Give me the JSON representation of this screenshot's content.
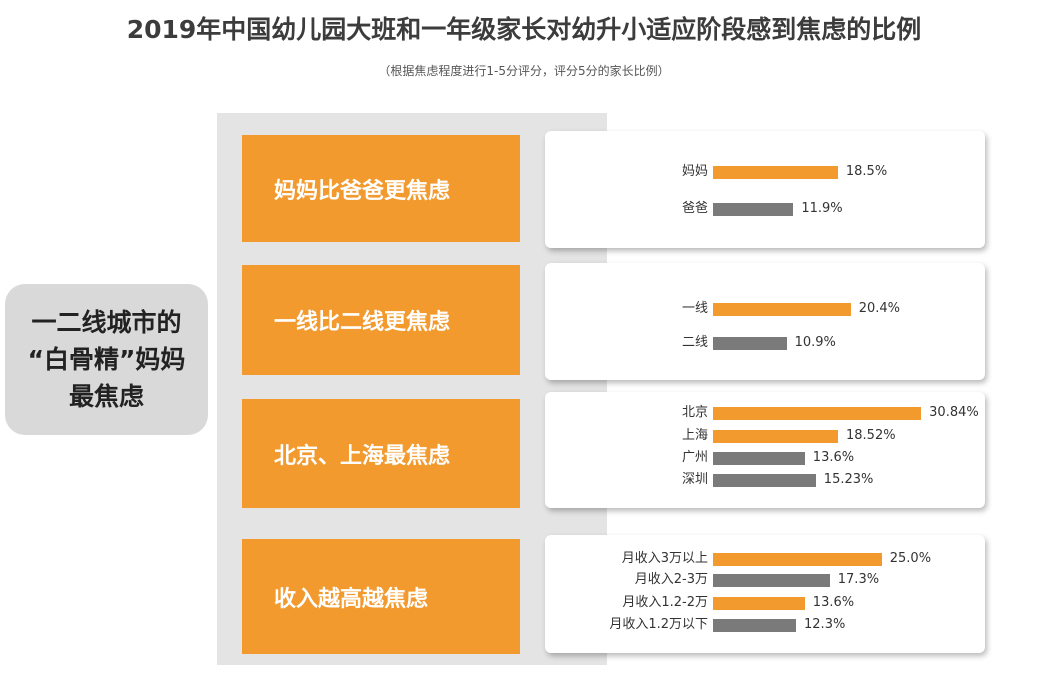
{
  "title": "2019年中国幼儿园大班和一年级家长对幼升小适应阶段感到焦虑的比例",
  "subtitle": "（根据焦虑程度进行1-5分评分，评分5分的家长比例）",
  "left_box": {
    "lines": [
      "一二线城市的",
      "“白骨精”妈妈",
      "最焦虑"
    ]
  },
  "colors": {
    "orange": "#f29a2e",
    "gray": "#7a7a7a"
  },
  "chart_data": [
    {
      "type": "bar",
      "title": "妈妈比爸爸更焦虑",
      "categories": [
        "妈妈",
        "爸爸"
      ],
      "values": [
        18.5,
        11.9
      ],
      "labels": [
        "18.5%",
        "11.9%"
      ],
      "highlight": [
        "orange",
        "gray"
      ]
    },
    {
      "type": "bar",
      "title": "一线比二线更焦虑",
      "categories": [
        "一线",
        "二线"
      ],
      "values": [
        20.4,
        10.9
      ],
      "labels": [
        "20.4%",
        "10.9%"
      ],
      "highlight": [
        "orange",
        "gray"
      ]
    },
    {
      "type": "bar",
      "title": "北京、上海最焦虑",
      "categories": [
        "北京",
        "上海",
        "广州",
        "深圳"
      ],
      "values": [
        30.84,
        18.52,
        13.6,
        15.23
      ],
      "labels": [
        "30.84%",
        "18.52%",
        "13.6%",
        "15.23%"
      ],
      "highlight": [
        "orange",
        "orange",
        "gray",
        "gray"
      ]
    },
    {
      "type": "bar",
      "title": "收入越高越焦虑",
      "categories": [
        "月收入3万以上",
        "月收入2-3万",
        "月收入1.2-2万",
        "月收入1.2万以下"
      ],
      "values": [
        25.0,
        17.3,
        13.6,
        12.3
      ],
      "labels": [
        "25.0%",
        "17.3%",
        "13.6%",
        "12.3%"
      ],
      "highlight": [
        "orange",
        "gray",
        "orange",
        "gray"
      ]
    }
  ]
}
